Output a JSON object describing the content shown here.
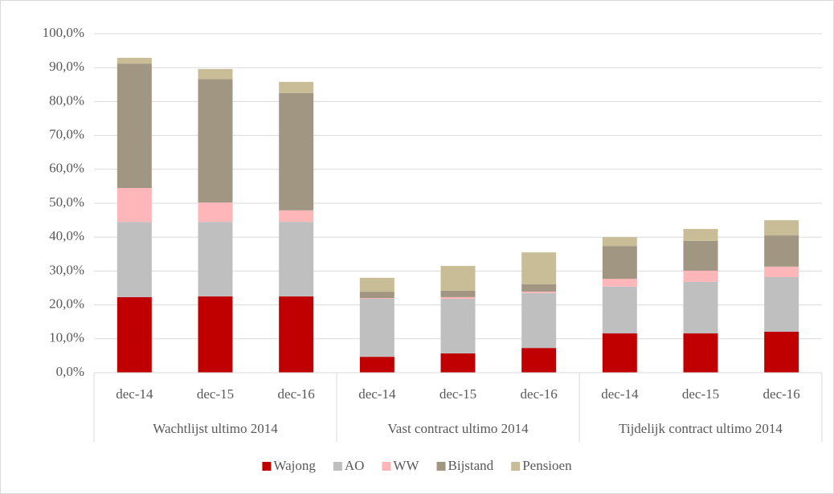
{
  "chart_data": {
    "type": "stacked_bar",
    "categories": [
      "dec-14",
      "dec-15",
      "dec-16",
      "dec-14",
      "dec-15",
      "dec-16",
      "dec-14",
      "dec-15",
      "dec-16"
    ],
    "groups": [
      "Wachtlijst ultimo 2014",
      "Vast contract ultimo 2014",
      "Tijdelijk contract ultimo 2014"
    ],
    "series": [
      {
        "name": "Wajong",
        "color": "#c00000",
        "values": [
          22.3,
          22.5,
          22.5,
          4.7,
          5.7,
          7.3,
          11.6,
          11.6,
          12.1
        ]
      },
      {
        "name": "AO",
        "color": "#bfbfbf",
        "values": [
          22.2,
          22.0,
          22.0,
          17.1,
          16.1,
          16.2,
          13.8,
          15.2,
          16.1
        ]
      },
      {
        "name": "WW",
        "color": "#ffb6b9",
        "values": [
          10.0,
          5.7,
          3.4,
          0.2,
          0.5,
          0.4,
          2.3,
          3.3,
          3.1
        ]
      },
      {
        "name": "Bijstand",
        "color": "#a09682",
        "values": [
          36.7,
          36.4,
          34.6,
          1.9,
          1.9,
          2.2,
          9.7,
          8.8,
          9.2
        ]
      },
      {
        "name": "Pensioen",
        "color": "#c9bd97",
        "values": [
          1.7,
          3.0,
          3.3,
          4.1,
          7.3,
          9.4,
          2.6,
          3.5,
          4.5
        ]
      }
    ],
    "ylim": [
      0,
      100
    ],
    "yticks": [
      {
        "value": 0,
        "label": "0,0%"
      },
      {
        "value": 10,
        "label": "10,0%"
      },
      {
        "value": 20,
        "label": "20,0%"
      },
      {
        "value": 30,
        "label": "30,0%"
      },
      {
        "value": 40,
        "label": "40,0%"
      },
      {
        "value": 50,
        "label": "50,0%"
      },
      {
        "value": 60,
        "label": "60,0%"
      },
      {
        "value": 70,
        "label": "70,0%"
      },
      {
        "value": 80,
        "label": "80,0%"
      },
      {
        "value": 90,
        "label": "90,0%"
      },
      {
        "value": 100,
        "label": "100,0%"
      }
    ],
    "grid": true,
    "legend": "bottom"
  }
}
